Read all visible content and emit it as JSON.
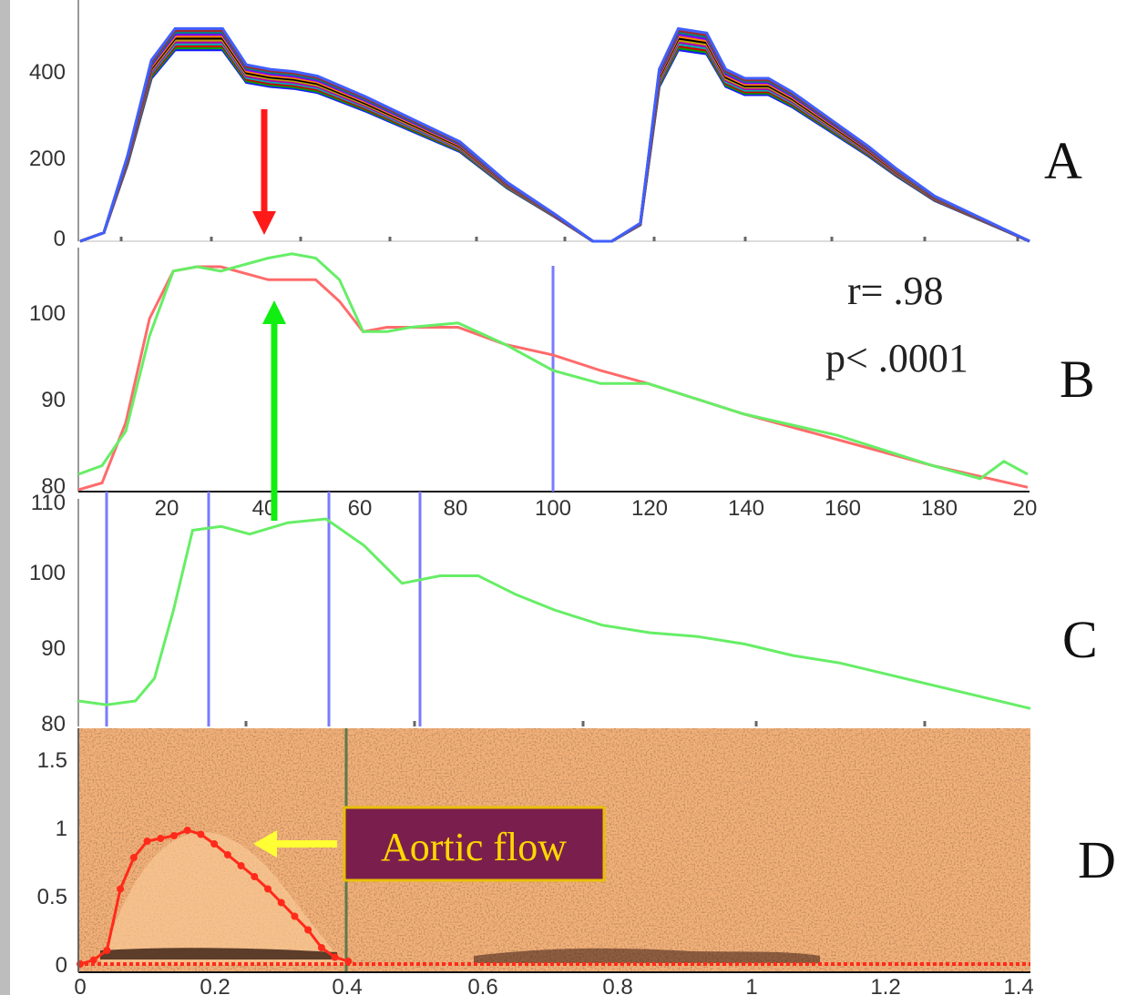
{
  "panels": {
    "A": {
      "letter": "A",
      "yticks": [
        "0",
        "200",
        "400"
      ],
      "ylim": [
        0,
        540
      ]
    },
    "B": {
      "letter": "B",
      "yticks": [
        "80",
        "90",
        "100"
      ],
      "ylim": [
        80,
        110
      ],
      "xticks": [
        "20",
        "40",
        "60",
        "80",
        "100",
        "120",
        "140",
        "160",
        "180",
        "20"
      ],
      "stats": {
        "r": "r= .98",
        "p": "p< .0001"
      }
    },
    "C": {
      "letter": "C",
      "yticks": [
        "80",
        "90",
        "100",
        "110"
      ]
    },
    "D": {
      "letter": "D",
      "yticks": [
        "0",
        "0.5",
        "1",
        "1.5"
      ],
      "xticks": [
        "0",
        "0.2",
        "0.4",
        "0.6",
        "0.8",
        "1",
        "1.2",
        "1.4"
      ],
      "annotation": "Aortic flow"
    }
  },
  "colors": {
    "measured": "#ff6b6b",
    "model": "#66ee66",
    "marker": "#7a7aff",
    "red_arrow": "#ff1a1a",
    "green_arrow": "#11ee11",
    "yellow_arrow": "#ffff33",
    "doppler_bg": "#f4b27a",
    "doppler_dark": "#8a4a26",
    "flow_trace": "#ff2a1a",
    "label_box": "#7a1f4d",
    "label_border": "#e8c000"
  },
  "chart_data": [
    {
      "panel": "A",
      "type": "line",
      "ylim": [
        0,
        540
      ],
      "series": [
        {
          "x": [
            0,
            5,
            10,
            15,
            20,
            25,
            30,
            35,
            40,
            45,
            50,
            60,
            70,
            80,
            90,
            100,
            108,
            112,
            118,
            122,
            126,
            132,
            136,
            140,
            145,
            150,
            158,
            166,
            172,
            180,
            190,
            200
          ],
          "y": [
            0,
            20,
            190,
            400,
            470,
            470,
            470,
            390,
            380,
            375,
            365,
            320,
            270,
            220,
            130,
            60,
            0,
            0,
            40,
            380,
            470,
            460,
            380,
            360,
            360,
            330,
            270,
            210,
            160,
            100,
            50,
            0
          ]
        }
      ]
    },
    {
      "panel": "B",
      "type": "line",
      "ylim": [
        80,
        110
      ],
      "xlim": [
        0,
        200
      ],
      "series": [
        {
          "color": "red",
          "x": [
            0,
            5,
            10,
            15,
            20,
            25,
            30,
            40,
            45,
            50,
            55,
            60,
            65,
            70,
            80,
            90,
            100,
            110,
            120,
            140,
            160,
            180,
            200
          ],
          "y": [
            80.2,
            81,
            88,
            100,
            105.5,
            106,
            106,
            104.5,
            104.5,
            104.5,
            102,
            98.5,
            99,
            99,
            99,
            97,
            95.8,
            94,
            92.5,
            89,
            86,
            83,
            80.5
          ]
        },
        {
          "color": "green",
          "x": [
            0,
            5,
            10,
            15,
            20,
            25,
            30,
            40,
            45,
            50,
            55,
            60,
            65,
            70,
            80,
            90,
            100,
            110,
            120,
            140,
            160,
            180,
            190,
            195,
            200
          ],
          "y": [
            82,
            83,
            87,
            98,
            105.5,
            106,
            105.5,
            107,
            107.5,
            107,
            104.5,
            98.5,
            98.5,
            99,
            99.5,
            97,
            94,
            92.5,
            92.5,
            89,
            86.5,
            83,
            81.5,
            83.5,
            82
          ]
        }
      ]
    },
    {
      "panel": "C",
      "type": "line",
      "ylim": [
        80,
        110
      ],
      "series": [
        {
          "color": "green",
          "x": [
            0,
            3,
            6,
            8,
            10,
            12,
            15,
            18,
            22,
            26,
            30,
            34,
            38,
            42,
            46,
            50,
            55,
            60,
            65,
            70,
            75,
            80,
            85,
            90,
            95,
            100
          ],
          "y": [
            83,
            82.5,
            83,
            86,
            95,
            105.5,
            106,
            105,
            106.5,
            107,
            103.5,
            98.5,
            99.5,
            99.5,
            97,
            95,
            93,
            92,
            91.5,
            90.5,
            89,
            88,
            86.5,
            85,
            83.5,
            82
          ]
        }
      ]
    },
    {
      "panel": "D",
      "type": "line",
      "xlim": [
        0,
        1.4
      ],
      "ylim": [
        0,
        1.6
      ],
      "series": [
        {
          "x": [
            0,
            0.02,
            0.04,
            0.06,
            0.08,
            0.1,
            0.12,
            0.14,
            0.16,
            0.18,
            0.2,
            0.22,
            0.24,
            0.26,
            0.28,
            0.3,
            0.32,
            0.34,
            0.36,
            0.38,
            0.4
          ],
          "y": [
            0,
            0.03,
            0.1,
            0.55,
            0.78,
            0.9,
            0.92,
            0.94,
            0.98,
            0.95,
            0.88,
            0.8,
            0.72,
            0.64,
            0.55,
            0.45,
            0.35,
            0.25,
            0.12,
            0.05,
            0.02
          ]
        }
      ]
    }
  ]
}
